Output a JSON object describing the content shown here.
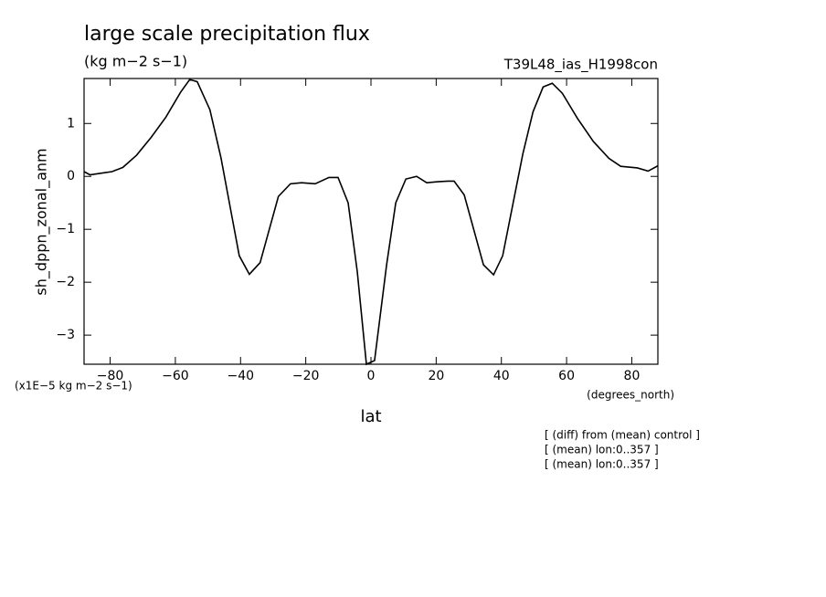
{
  "chart_data": {
    "type": "line",
    "title": "large scale precipitation flux",
    "subtitle": "(kg m−2 s−1)",
    "run_label": "T39L48_ias_H1998con",
    "y_label": "sh_dppn_zonal_anm",
    "y_unit": "(x1E−5 kg m−2 s−1)",
    "x_label": "lat",
    "x_unit": "(degrees_north)",
    "notes": [
      "[ (diff) from (mean) control ]",
      "[ (mean) lon:0..357 ]",
      "[ (mean) lon:0..357 ]"
    ],
    "x": [
      -88,
      -86.2,
      -81.7,
      -79.4,
      -76.1,
      -71.9,
      -67.4,
      -62.9,
      -58.4,
      -55.6,
      -53.3,
      -49.4,
      -46,
      -40.4,
      -37.3,
      -34,
      -28.4,
      -24.7,
      -21.3,
      -17.1,
      -12.9,
      -10.1,
      -7,
      -4.2,
      -1.4,
      1.1,
      4.8,
      7.6,
      10.7,
      14,
      17.1,
      20.5,
      23.6,
      25.5,
      28.6,
      34.5,
      37.6,
      40.4,
      46.6,
      49.7,
      52.8,
      55.6,
      58.7,
      63.4,
      68.2,
      73,
      76.6,
      81.7,
      85,
      88
    ],
    "series": [
      {
        "color": "#000000",
        "values": [
          0.09,
          0.03,
          0.07,
          0.09,
          0.17,
          0.4,
          0.74,
          1.12,
          1.59,
          1.83,
          1.79,
          1.26,
          0.35,
          -1.5,
          -1.85,
          -1.63,
          -0.38,
          -0.14,
          -0.12,
          -0.14,
          -0.02,
          -0.02,
          -0.5,
          -1.8,
          -3.55,
          -3.48,
          -1.67,
          -0.5,
          -0.05,
          0,
          -0.12,
          -0.1,
          -0.09,
          -0.09,
          -0.35,
          -1.67,
          -1.86,
          -1.5,
          0.43,
          1.22,
          1.69,
          1.76,
          1.57,
          1.09,
          0.66,
          0.34,
          0.19,
          0.16,
          0.1,
          0.2
        ]
      }
    ],
    "xlim": [
      -88,
      88
    ],
    "ylim": [
      -3.55,
      1.85
    ],
    "xticks": [
      {
        "value": -80,
        "label": "−80"
      },
      {
        "value": -60,
        "label": "−60"
      },
      {
        "value": -40,
        "label": "−40"
      },
      {
        "value": -20,
        "label": "−20"
      },
      0,
      20,
      40,
      60,
      80
    ],
    "yticks": [
      {
        "value": -3,
        "label": "−3"
      },
      {
        "value": -2,
        "label": "−2"
      },
      {
        "value": -1,
        "label": "−1"
      },
      0,
      1
    ]
  }
}
